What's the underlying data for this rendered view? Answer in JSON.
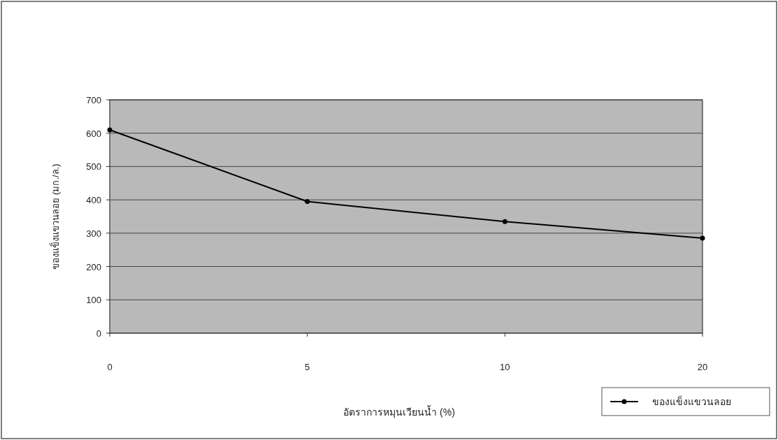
{
  "chart_data": {
    "type": "line",
    "xlabel": "อัตราการหมุนเวียนน้ำ (%)",
    "ylabel": "ของแข็งแขวนลอย (มก./ล.)",
    "categories": [
      "0",
      "5",
      "10",
      "20"
    ],
    "series": [
      {
        "name": "ของแข็งแขวนลอย",
        "color": "#000000",
        "values": [
          610,
          395,
          335,
          285
        ]
      }
    ],
    "ylim": [
      0,
      700
    ],
    "yticks": [
      0,
      100,
      200,
      300,
      400,
      500,
      600,
      700
    ],
    "grid": "y",
    "legend": "bottom right",
    "marker": "circle",
    "line_style": "solid"
  }
}
